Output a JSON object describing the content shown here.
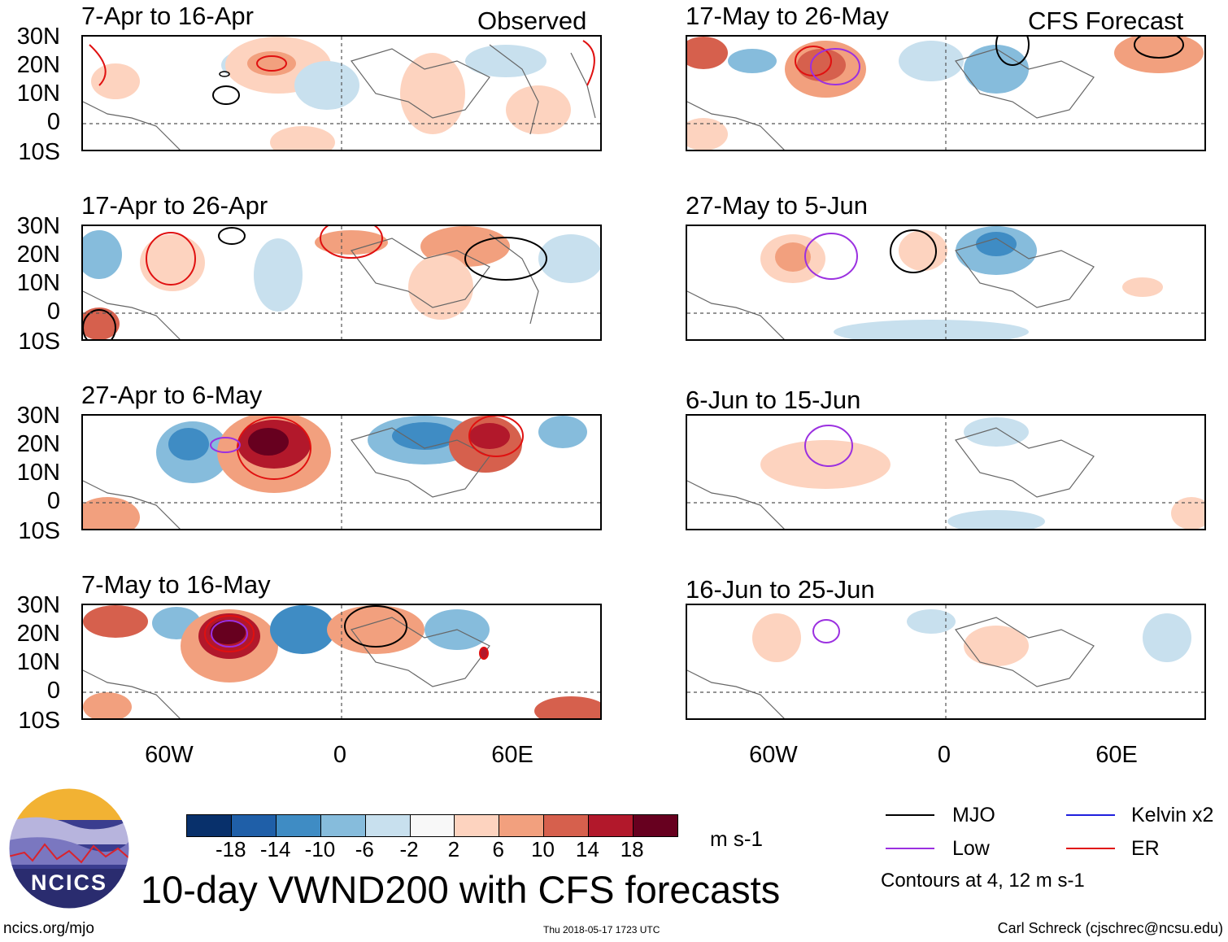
{
  "header": {
    "left_mode": "Observed",
    "right_mode": "CFS Forecast"
  },
  "panels_left": [
    {
      "title": "7-Apr to 16-Apr"
    },
    {
      "title": "17-Apr to 26-Apr"
    },
    {
      "title": "27-Apr to 6-May"
    },
    {
      "title": "7-May to 16-May"
    }
  ],
  "panels_right": [
    {
      "title": "17-May to 26-May"
    },
    {
      "title": "27-May to 5-Jun"
    },
    {
      "title": "6-Jun to 15-Jun"
    },
    {
      "title": "16-Jun to 25-Jun"
    }
  ],
  "lat_ticks": [
    "30N",
    "20N",
    "10N",
    "0",
    "10S"
  ],
  "lon_ticks": [
    "60W",
    "0",
    "60E"
  ],
  "colorbar": {
    "ticks": [
      "-18",
      "-14",
      "-10",
      "-6",
      "-2",
      "2",
      "6",
      "10",
      "14",
      "18"
    ],
    "colors": [
      "#08306b",
      "#1f5fa8",
      "#3f8cc4",
      "#86bcdc",
      "#c8e0ee",
      "#f8f8f8",
      "#fdd3bf",
      "#f2a07e",
      "#d6604d",
      "#b2182b",
      "#67001f"
    ],
    "units": "m s-1"
  },
  "legend": {
    "items": [
      {
        "label": "MJO",
        "color": "#000000"
      },
      {
        "label": "Kelvin x2",
        "color": "#1f1fdd"
      },
      {
        "label": "Low",
        "color": "#9b30e0"
      },
      {
        "label": "ER",
        "color": "#e01010"
      }
    ],
    "note": "Contours at 4, 12 m s-1"
  },
  "logo": {
    "text": "NCICS"
  },
  "figure_title": "10-day VWND200 with CFS forecasts",
  "footer": {
    "url": "ncics.org/mjo",
    "timestamp": "Thu 2018-05-17 1723 UTC",
    "author": "Carl Schreck (cjschrec@ncsu.edu)"
  }
}
